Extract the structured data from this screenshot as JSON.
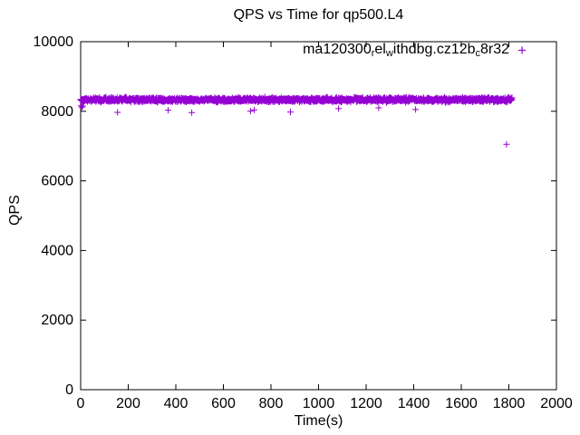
{
  "page": {
    "background": "#ffffff",
    "kind": "gnuplot scatter plot screenshot"
  },
  "chart_data": {
    "type": "scatter",
    "title": "QPS vs Time for qp500.L4",
    "xlabel": "Time(s)",
    "ylabel": "QPS",
    "xlim": [
      0,
      2000
    ],
    "ylim": [
      0,
      10000
    ],
    "xticks": [
      0,
      200,
      400,
      600,
      800,
      1000,
      1200,
      1400,
      1600,
      1800,
      2000
    ],
    "yticks": [
      0,
      2000,
      4000,
      6000,
      8000,
      10000
    ],
    "grid": false,
    "legend_position": "top-right-inside",
    "axis_color": "#000000",
    "series": [
      {
        "name_raw": "ma120300_rel_withdbg.cz12b_c8r32",
        "name_segments": [
          {
            "t": "ma120300",
            "sub": false
          },
          {
            "t": "r",
            "sub": true
          },
          {
            "t": "el",
            "sub": false
          },
          {
            "t": "w",
            "sub": true
          },
          {
            "t": "ithdbg.cz12b",
            "sub": false
          },
          {
            "t": "c",
            "sub": true
          },
          {
            "t": "8r32",
            "sub": false
          }
        ],
        "marker": "+",
        "color": "#9400d3",
        "band": {
          "description": "dense steady-state band of + points from t=0s to t=1813s centered near 8335 QPS with ~±90 QPS noise",
          "t_start": 0,
          "t_end": 1813,
          "mean_qps": 8335,
          "spread_qps": 90,
          "n_points": 1800,
          "seed": 1337
        },
        "outliers": [
          [
            2,
            8160
          ],
          [
            5,
            8120
          ],
          [
            9,
            8150
          ],
          [
            155,
            7970
          ],
          [
            368,
            8030
          ],
          [
            467,
            7960
          ],
          [
            714,
            8005
          ],
          [
            730,
            8040
          ],
          [
            882,
            7980
          ],
          [
            1084,
            8075
          ],
          [
            1253,
            8100
          ],
          [
            1408,
            8050
          ],
          [
            1790,
            7050
          ]
        ]
      }
    ]
  }
}
